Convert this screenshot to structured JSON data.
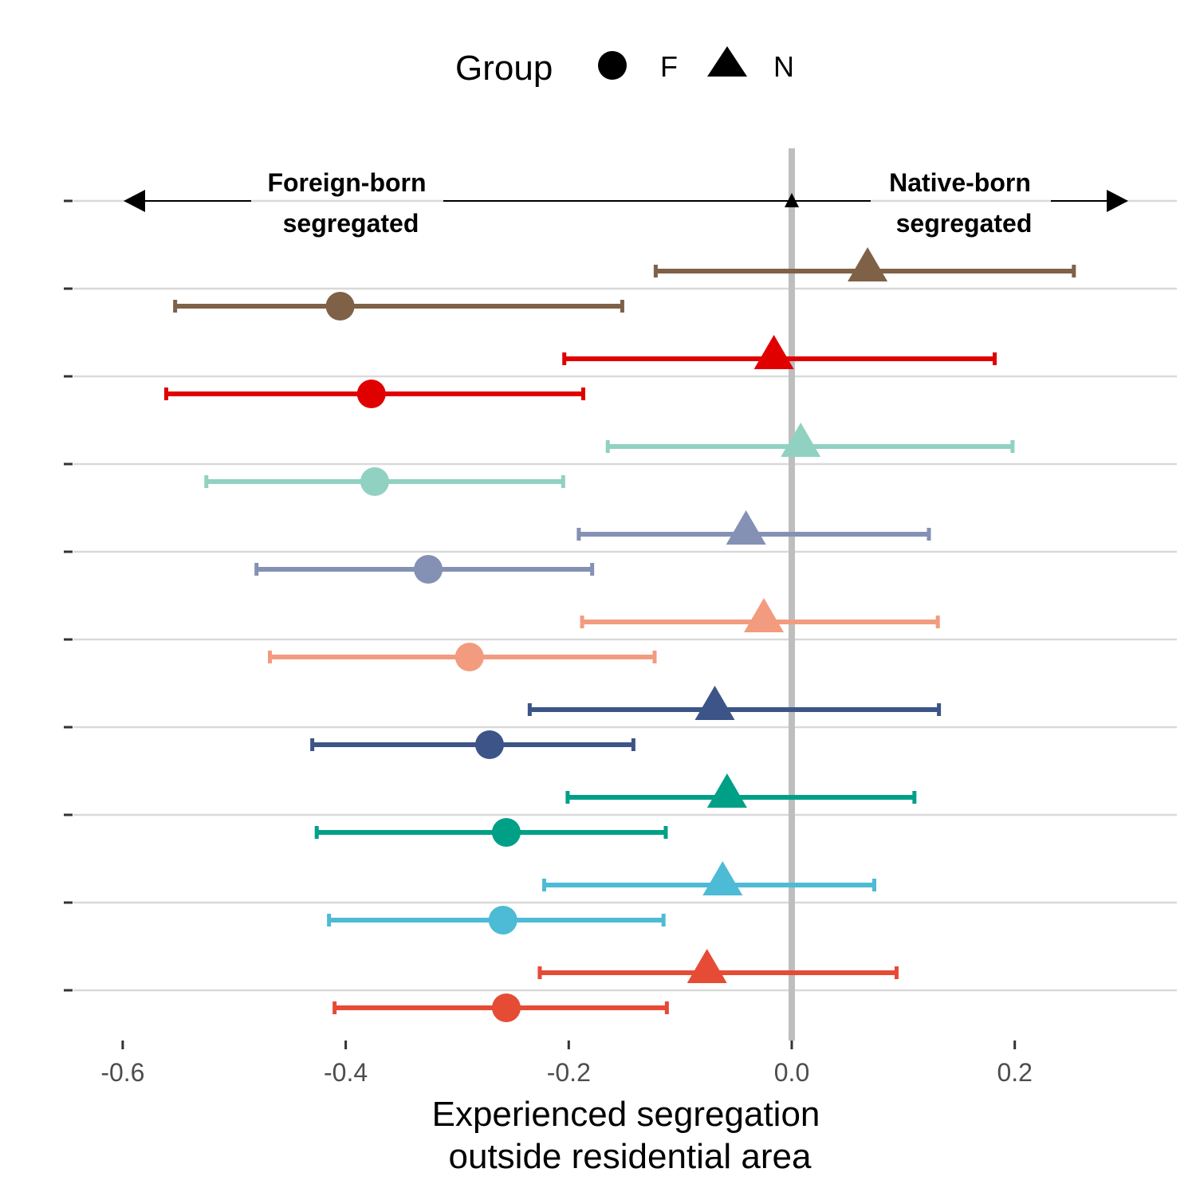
{
  "legend": {
    "title": "Group",
    "items": [
      {
        "label": "F",
        "shape": "circle"
      },
      {
        "label": "N",
        "shape": "triangle"
      }
    ]
  },
  "annotations": {
    "left_line1": "Foreign-born",
    "left_line2": "segregated",
    "right_line1": "Native-born",
    "right_line2": "segregated"
  },
  "chart_data": {
    "type": "scatter",
    "title": "",
    "xlabel_line1": "Experienced segregation",
    "xlabel_line2": "outside residential area",
    "ylabel": "",
    "xlim": [
      -0.65,
      0.345
    ],
    "x_ticks": [
      -0.6,
      -0.4,
      -0.2,
      0.0,
      0.2
    ],
    "x_tick_labels": [
      "-0.6",
      "-0.4",
      "-0.2",
      "0.0",
      "0.2"
    ],
    "reference_line_x": 0.0,
    "grid": "horizontal",
    "legend_position": "top",
    "rows": [
      {
        "color": "#7f6148",
        "N": {
          "estimate": 0.068,
          "lower": -0.122,
          "upper": 0.253
        },
        "F": {
          "estimate": -0.405,
          "lower": -0.553,
          "upper": -0.152
        }
      },
      {
        "color": "#e00000",
        "N": {
          "estimate": -0.016,
          "lower": -0.204,
          "upper": 0.182
        },
        "F": {
          "estimate": -0.377,
          "lower": -0.561,
          "upper": -0.187
        }
      },
      {
        "color": "#91d1c2",
        "N": {
          "estimate": 0.008,
          "lower": -0.165,
          "upper": 0.198
        },
        "F": {
          "estimate": -0.374,
          "lower": -0.525,
          "upper": -0.205
        }
      },
      {
        "color": "#8491b4",
        "N": {
          "estimate": -0.041,
          "lower": -0.191,
          "upper": 0.123
        },
        "F": {
          "estimate": -0.326,
          "lower": -0.48,
          "upper": -0.179
        }
      },
      {
        "color": "#f39b7f",
        "N": {
          "estimate": -0.025,
          "lower": -0.188,
          "upper": 0.131
        },
        "F": {
          "estimate": -0.289,
          "lower": -0.468,
          "upper": -0.123
        }
      },
      {
        "color": "#3c5488",
        "N": {
          "estimate": -0.069,
          "lower": -0.235,
          "upper": 0.132
        },
        "F": {
          "estimate": -0.271,
          "lower": -0.43,
          "upper": -0.142
        }
      },
      {
        "color": "#00a087",
        "N": {
          "estimate": -0.058,
          "lower": -0.201,
          "upper": 0.11
        },
        "F": {
          "estimate": -0.256,
          "lower": -0.426,
          "upper": -0.113
        }
      },
      {
        "color": "#4dbbd5",
        "N": {
          "estimate": -0.062,
          "lower": -0.222,
          "upper": 0.074
        },
        "F": {
          "estimate": -0.259,
          "lower": -0.415,
          "upper": -0.115
        }
      },
      {
        "color": "#e64b35",
        "N": {
          "estimate": -0.076,
          "lower": -0.226,
          "upper": 0.094
        },
        "F": {
          "estimate": -0.256,
          "lower": -0.41,
          "upper": -0.112
        }
      }
    ]
  }
}
